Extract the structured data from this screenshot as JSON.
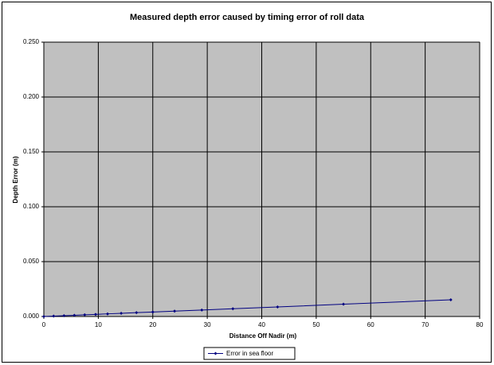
{
  "chart_data": {
    "type": "line",
    "title": "Measured depth error caused by timing error of roll data",
    "x_label": "Distance Off Nadir (m)",
    "y_label": "Depth Error (m)",
    "x": [
      0,
      1.8,
      3.7,
      5.6,
      7.5,
      9.5,
      11.7,
      14.2,
      17.0,
      20.0,
      24.0,
      29.0,
      34.7,
      42.9,
      55.0,
      74.7
    ],
    "series": [
      {
        "name": "Error in sea floor",
        "color": "#000080",
        "values": [
          0,
          0.0004,
          0.0007,
          0.0011,
          0.0015,
          0.0019,
          0.0024,
          0.0029,
          0.0035,
          0.0041,
          0.0049,
          0.0059,
          0.0071,
          0.0087,
          0.0112,
          0.0152
        ]
      }
    ],
    "xlim": [
      0,
      80
    ],
    "xticks": [
      0,
      10,
      20,
      30,
      40,
      50,
      60,
      70,
      80
    ],
    "ylim": [
      0,
      0.25
    ],
    "yticks": [
      {
        "value": 0,
        "label": "0.000"
      },
      {
        "value": 0.05,
        "label": "0.050"
      },
      {
        "value": 0.1,
        "label": "0.100"
      },
      {
        "value": 0.15,
        "label": "0.150"
      },
      {
        "value": 0.2,
        "label": "0.200"
      },
      {
        "value": 0.25,
        "label": "0.250"
      }
    ],
    "grid": true,
    "legend": "bottom",
    "plot_background": "#c0c0c0"
  }
}
